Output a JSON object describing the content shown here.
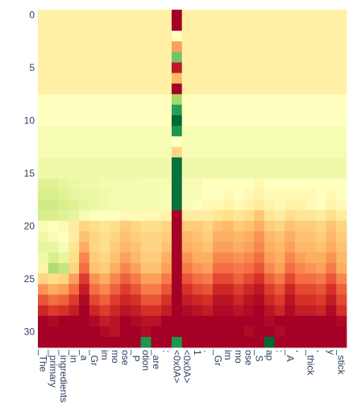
{
  "chart_data": {
    "type": "heatmap",
    "colorscale": [
      "#006837",
      "#1a9850",
      "#66bd63",
      "#a6d96a",
      "#d9ef8b",
      "#ffffbf",
      "#fee08b",
      "#fdae61",
      "#f46d43",
      "#d73027",
      "#a50026"
    ],
    "x_labels": [
      "_The",
      "_primary",
      "_ingredients",
      "_in",
      "_a",
      "_Gr",
      "im",
      "mo",
      "ose",
      "_P",
      "otion",
      "_are",
      ":",
      "<0x0A>",
      "<0x0A>",
      "1",
      ".",
      "_Gr",
      "im",
      "mo",
      "ose",
      "_S",
      "ap",
      ":",
      "_A",
      ",",
      "_thick",
      ",",
      "y",
      "_stick"
    ],
    "y_ticks": [
      0,
      5,
      10,
      15,
      20,
      25,
      30
    ],
    "y_range": [
      0,
      31
    ],
    "value_range": [
      0,
      1
    ],
    "values": [
      [
        0.55,
        0.55,
        0.55,
        0.55,
        0.55,
        0.55,
        0.55,
        0.55,
        0.55,
        0.55,
        0.55,
        0.55,
        0.55,
        1.0,
        0.55,
        0.55,
        0.55,
        0.55,
        0.55,
        0.55,
        0.55,
        0.55,
        0.55,
        0.55,
        0.55,
        0.55,
        0.55,
        0.55,
        0.55,
        0.55
      ],
      [
        0.55,
        0.55,
        0.55,
        0.55,
        0.55,
        0.55,
        0.55,
        0.55,
        0.55,
        0.55,
        0.55,
        0.55,
        0.55,
        1.0,
        0.55,
        0.55,
        0.55,
        0.55,
        0.55,
        0.55,
        0.55,
        0.55,
        0.55,
        0.55,
        0.55,
        0.55,
        0.55,
        0.55,
        0.55,
        0.55
      ],
      [
        0.55,
        0.55,
        0.55,
        0.55,
        0.55,
        0.55,
        0.55,
        0.55,
        0.55,
        0.55,
        0.55,
        0.55,
        0.55,
        0.5,
        0.55,
        0.55,
        0.55,
        0.55,
        0.55,
        0.55,
        0.55,
        0.55,
        0.55,
        0.55,
        0.55,
        0.55,
        0.55,
        0.55,
        0.55,
        0.55
      ],
      [
        0.55,
        0.55,
        0.55,
        0.55,
        0.55,
        0.55,
        0.55,
        0.55,
        0.55,
        0.55,
        0.55,
        0.55,
        0.55,
        0.72,
        0.55,
        0.55,
        0.55,
        0.55,
        0.55,
        0.55,
        0.55,
        0.55,
        0.55,
        0.55,
        0.55,
        0.55,
        0.55,
        0.55,
        0.55,
        0.55
      ],
      [
        0.55,
        0.55,
        0.55,
        0.55,
        0.55,
        0.55,
        0.55,
        0.55,
        0.55,
        0.55,
        0.55,
        0.55,
        0.55,
        0.22,
        0.55,
        0.55,
        0.55,
        0.55,
        0.55,
        0.55,
        0.55,
        0.55,
        0.55,
        0.55,
        0.55,
        0.55,
        0.55,
        0.55,
        0.55,
        0.55
      ],
      [
        0.55,
        0.55,
        0.55,
        0.55,
        0.55,
        0.55,
        0.55,
        0.55,
        0.55,
        0.55,
        0.55,
        0.55,
        0.55,
        0.95,
        0.55,
        0.55,
        0.55,
        0.55,
        0.55,
        0.55,
        0.55,
        0.55,
        0.55,
        0.55,
        0.55,
        0.55,
        0.55,
        0.55,
        0.55,
        0.55
      ],
      [
        0.55,
        0.55,
        0.55,
        0.55,
        0.55,
        0.55,
        0.55,
        0.55,
        0.55,
        0.55,
        0.55,
        0.55,
        0.55,
        0.68,
        0.55,
        0.55,
        0.55,
        0.55,
        0.55,
        0.55,
        0.55,
        0.55,
        0.55,
        0.55,
        0.55,
        0.55,
        0.55,
        0.55,
        0.55,
        0.55
      ],
      [
        0.55,
        0.55,
        0.55,
        0.55,
        0.55,
        0.55,
        0.55,
        0.55,
        0.55,
        0.55,
        0.55,
        0.55,
        0.55,
        1.0,
        0.55,
        0.55,
        0.55,
        0.55,
        0.55,
        0.55,
        0.55,
        0.55,
        0.55,
        0.55,
        0.55,
        0.55,
        0.55,
        0.55,
        0.55,
        0.55
      ],
      [
        0.5,
        0.5,
        0.5,
        0.5,
        0.5,
        0.5,
        0.5,
        0.5,
        0.5,
        0.5,
        0.5,
        0.5,
        0.5,
        0.3,
        0.5,
        0.5,
        0.5,
        0.5,
        0.5,
        0.5,
        0.5,
        0.5,
        0.5,
        0.5,
        0.5,
        0.5,
        0.5,
        0.5,
        0.5,
        0.5
      ],
      [
        0.5,
        0.5,
        0.5,
        0.5,
        0.5,
        0.5,
        0.5,
        0.5,
        0.5,
        0.5,
        0.5,
        0.5,
        0.5,
        0.12,
        0.5,
        0.5,
        0.5,
        0.5,
        0.5,
        0.5,
        0.5,
        0.5,
        0.5,
        0.5,
        0.5,
        0.5,
        0.5,
        0.5,
        0.5,
        0.5
      ],
      [
        0.5,
        0.5,
        0.5,
        0.5,
        0.5,
        0.5,
        0.5,
        0.5,
        0.5,
        0.5,
        0.5,
        0.5,
        0.5,
        0.0,
        0.5,
        0.5,
        0.5,
        0.5,
        0.5,
        0.5,
        0.5,
        0.5,
        0.5,
        0.5,
        0.5,
        0.5,
        0.5,
        0.5,
        0.5,
        0.5
      ],
      [
        0.48,
        0.48,
        0.48,
        0.48,
        0.48,
        0.48,
        0.48,
        0.48,
        0.48,
        0.48,
        0.48,
        0.48,
        0.48,
        0.1,
        0.48,
        0.48,
        0.48,
        0.48,
        0.48,
        0.48,
        0.48,
        0.48,
        0.48,
        0.48,
        0.48,
        0.48,
        0.48,
        0.48,
        0.48,
        0.48
      ],
      [
        0.48,
        0.48,
        0.48,
        0.48,
        0.48,
        0.48,
        0.48,
        0.48,
        0.48,
        0.48,
        0.48,
        0.48,
        0.48,
        0.5,
        0.48,
        0.48,
        0.48,
        0.48,
        0.48,
        0.48,
        0.48,
        0.48,
        0.48,
        0.48,
        0.48,
        0.48,
        0.48,
        0.48,
        0.48,
        0.48
      ],
      [
        0.48,
        0.48,
        0.48,
        0.48,
        0.48,
        0.48,
        0.48,
        0.48,
        0.48,
        0.48,
        0.48,
        0.48,
        0.48,
        0.62,
        0.48,
        0.48,
        0.48,
        0.48,
        0.48,
        0.48,
        0.48,
        0.48,
        0.48,
        0.48,
        0.48,
        0.48,
        0.48,
        0.48,
        0.48,
        0.48
      ],
      [
        0.46,
        0.46,
        0.46,
        0.46,
        0.46,
        0.46,
        0.46,
        0.46,
        0.46,
        0.46,
        0.46,
        0.46,
        0.46,
        0.02,
        0.46,
        0.46,
        0.46,
        0.46,
        0.46,
        0.46,
        0.46,
        0.46,
        0.46,
        0.46,
        0.46,
        0.46,
        0.46,
        0.46,
        0.46,
        0.46
      ],
      [
        0.46,
        0.46,
        0.46,
        0.46,
        0.46,
        0.46,
        0.46,
        0.46,
        0.46,
        0.46,
        0.46,
        0.46,
        0.46,
        0.02,
        0.46,
        0.46,
        0.46,
        0.46,
        0.46,
        0.46,
        0.46,
        0.46,
        0.46,
        0.46,
        0.46,
        0.46,
        0.46,
        0.46,
        0.46,
        0.46
      ],
      [
        0.42,
        0.42,
        0.44,
        0.45,
        0.46,
        0.46,
        0.47,
        0.47,
        0.47,
        0.47,
        0.48,
        0.48,
        0.48,
        0.02,
        0.48,
        0.48,
        0.5,
        0.5,
        0.5,
        0.5,
        0.5,
        0.52,
        0.5,
        0.5,
        0.5,
        0.5,
        0.5,
        0.5,
        0.5,
        0.5
      ],
      [
        0.4,
        0.4,
        0.42,
        0.44,
        0.45,
        0.45,
        0.46,
        0.47,
        0.47,
        0.47,
        0.47,
        0.47,
        0.48,
        0.02,
        0.48,
        0.48,
        0.5,
        0.5,
        0.52,
        0.5,
        0.52,
        0.54,
        0.52,
        0.52,
        0.52,
        0.52,
        0.52,
        0.5,
        0.52,
        0.5
      ],
      [
        0.38,
        0.38,
        0.4,
        0.42,
        0.44,
        0.45,
        0.46,
        0.47,
        0.47,
        0.47,
        0.47,
        0.47,
        0.48,
        0.02,
        0.48,
        0.5,
        0.52,
        0.52,
        0.54,
        0.52,
        0.54,
        0.56,
        0.54,
        0.52,
        0.54,
        0.54,
        0.52,
        0.5,
        0.54,
        0.52
      ],
      [
        0.4,
        0.4,
        0.42,
        0.44,
        0.48,
        0.5,
        0.5,
        0.5,
        0.52,
        0.52,
        0.52,
        0.52,
        0.54,
        1.0,
        0.56,
        0.56,
        0.56,
        0.58,
        0.6,
        0.58,
        0.6,
        0.65,
        0.58,
        0.56,
        0.6,
        0.58,
        0.58,
        0.56,
        0.6,
        0.56
      ],
      [
        0.48,
        0.5,
        0.52,
        0.56,
        0.62,
        0.6,
        0.58,
        0.6,
        0.64,
        0.62,
        0.6,
        0.6,
        0.62,
        1.0,
        0.64,
        0.64,
        0.62,
        0.66,
        0.68,
        0.64,
        0.66,
        0.7,
        0.64,
        0.62,
        0.66,
        0.64,
        0.64,
        0.62,
        0.66,
        0.62
      ],
      [
        0.46,
        0.48,
        0.5,
        0.56,
        0.66,
        0.62,
        0.6,
        0.62,
        0.66,
        0.64,
        0.62,
        0.62,
        0.64,
        1.0,
        0.68,
        0.66,
        0.64,
        0.7,
        0.7,
        0.68,
        0.7,
        0.74,
        0.68,
        0.66,
        0.7,
        0.66,
        0.66,
        0.64,
        0.68,
        0.64
      ],
      [
        0.44,
        0.44,
        0.48,
        0.58,
        0.7,
        0.62,
        0.6,
        0.64,
        0.68,
        0.66,
        0.62,
        0.62,
        0.66,
        1.0,
        0.7,
        0.68,
        0.66,
        0.72,
        0.72,
        0.7,
        0.72,
        0.76,
        0.7,
        0.68,
        0.72,
        0.68,
        0.68,
        0.66,
        0.7,
        0.66
      ],
      [
        0.46,
        0.4,
        0.44,
        0.6,
        0.76,
        0.64,
        0.62,
        0.66,
        0.72,
        0.68,
        0.64,
        0.64,
        0.7,
        1.0,
        0.74,
        0.7,
        0.7,
        0.76,
        0.76,
        0.74,
        0.76,
        0.8,
        0.72,
        0.7,
        0.76,
        0.72,
        0.7,
        0.7,
        0.74,
        0.68
      ],
      [
        0.54,
        0.32,
        0.36,
        0.62,
        0.8,
        0.66,
        0.64,
        0.7,
        0.76,
        0.72,
        0.66,
        0.66,
        0.72,
        1.0,
        0.78,
        0.74,
        0.72,
        0.8,
        0.8,
        0.78,
        0.8,
        0.84,
        0.76,
        0.72,
        0.8,
        0.76,
        0.74,
        0.72,
        0.78,
        0.7
      ],
      [
        0.62,
        0.6,
        0.62,
        0.72,
        0.88,
        0.74,
        0.7,
        0.76,
        0.82,
        0.78,
        0.72,
        0.72,
        0.78,
        1.0,
        0.84,
        0.8,
        0.78,
        0.86,
        0.86,
        0.82,
        0.86,
        0.9,
        0.82,
        0.78,
        0.86,
        0.8,
        0.8,
        0.78,
        0.84,
        0.76
      ],
      [
        0.74,
        0.7,
        0.72,
        0.8,
        0.94,
        0.8,
        0.76,
        0.82,
        0.88,
        0.84,
        0.78,
        0.78,
        0.84,
        1.0,
        0.9,
        0.86,
        0.84,
        0.92,
        0.92,
        0.88,
        0.92,
        0.95,
        0.88,
        0.84,
        0.92,
        0.86,
        0.86,
        0.84,
        0.9,
        0.82
      ],
      [
        0.84,
        0.8,
        0.82,
        0.88,
        0.98,
        0.86,
        0.82,
        0.88,
        0.92,
        0.9,
        0.84,
        0.84,
        0.9,
        1.0,
        0.94,
        0.92,
        0.9,
        0.96,
        0.96,
        0.92,
        0.96,
        0.98,
        0.92,
        0.88,
        0.96,
        0.9,
        0.9,
        0.88,
        0.94,
        0.86
      ],
      [
        0.92,
        0.88,
        0.9,
        0.94,
        1.0,
        0.92,
        0.88,
        0.92,
        0.96,
        0.94,
        0.9,
        0.9,
        0.94,
        1.0,
        0.98,
        0.96,
        0.94,
        0.98,
        0.98,
        0.96,
        0.98,
        1.0,
        0.96,
        0.92,
        0.98,
        0.94,
        0.94,
        0.92,
        0.98,
        0.9
      ],
      [
        1.0,
        0.98,
        1.0,
        1.0,
        1.0,
        0.98,
        0.94,
        0.96,
        1.0,
        0.98,
        0.96,
        0.96,
        1.0,
        1.0,
        1.0,
        1.0,
        1.0,
        1.0,
        1.0,
        1.0,
        1.0,
        1.0,
        0.98,
        1.0,
        1.0,
        1.0,
        1.0,
        1.0,
        1.0,
        0.98
      ],
      [
        1.0,
        1.0,
        1.0,
        1.0,
        1.0,
        1.0,
        0.98,
        0.96,
        1.0,
        1.0,
        0.98,
        1.0,
        1.0,
        1.0,
        1.0,
        1.0,
        1.0,
        1.0,
        1.0,
        1.0,
        0.98,
        1.0,
        1.0,
        0.98,
        1.0,
        1.0,
        1.0,
        1.0,
        1.0,
        1.0
      ],
      [
        1.0,
        1.0,
        1.0,
        1.0,
        1.0,
        1.0,
        1.0,
        1.0,
        1.0,
        1.0,
        0.1,
        1.0,
        1.0,
        0.1,
        1.0,
        1.0,
        1.0,
        1.0,
        1.0,
        1.0,
        1.0,
        1.0,
        0.0,
        1.0,
        1.0,
        1.0,
        1.0,
        1.0,
        1.0,
        1.0
      ]
    ]
  }
}
